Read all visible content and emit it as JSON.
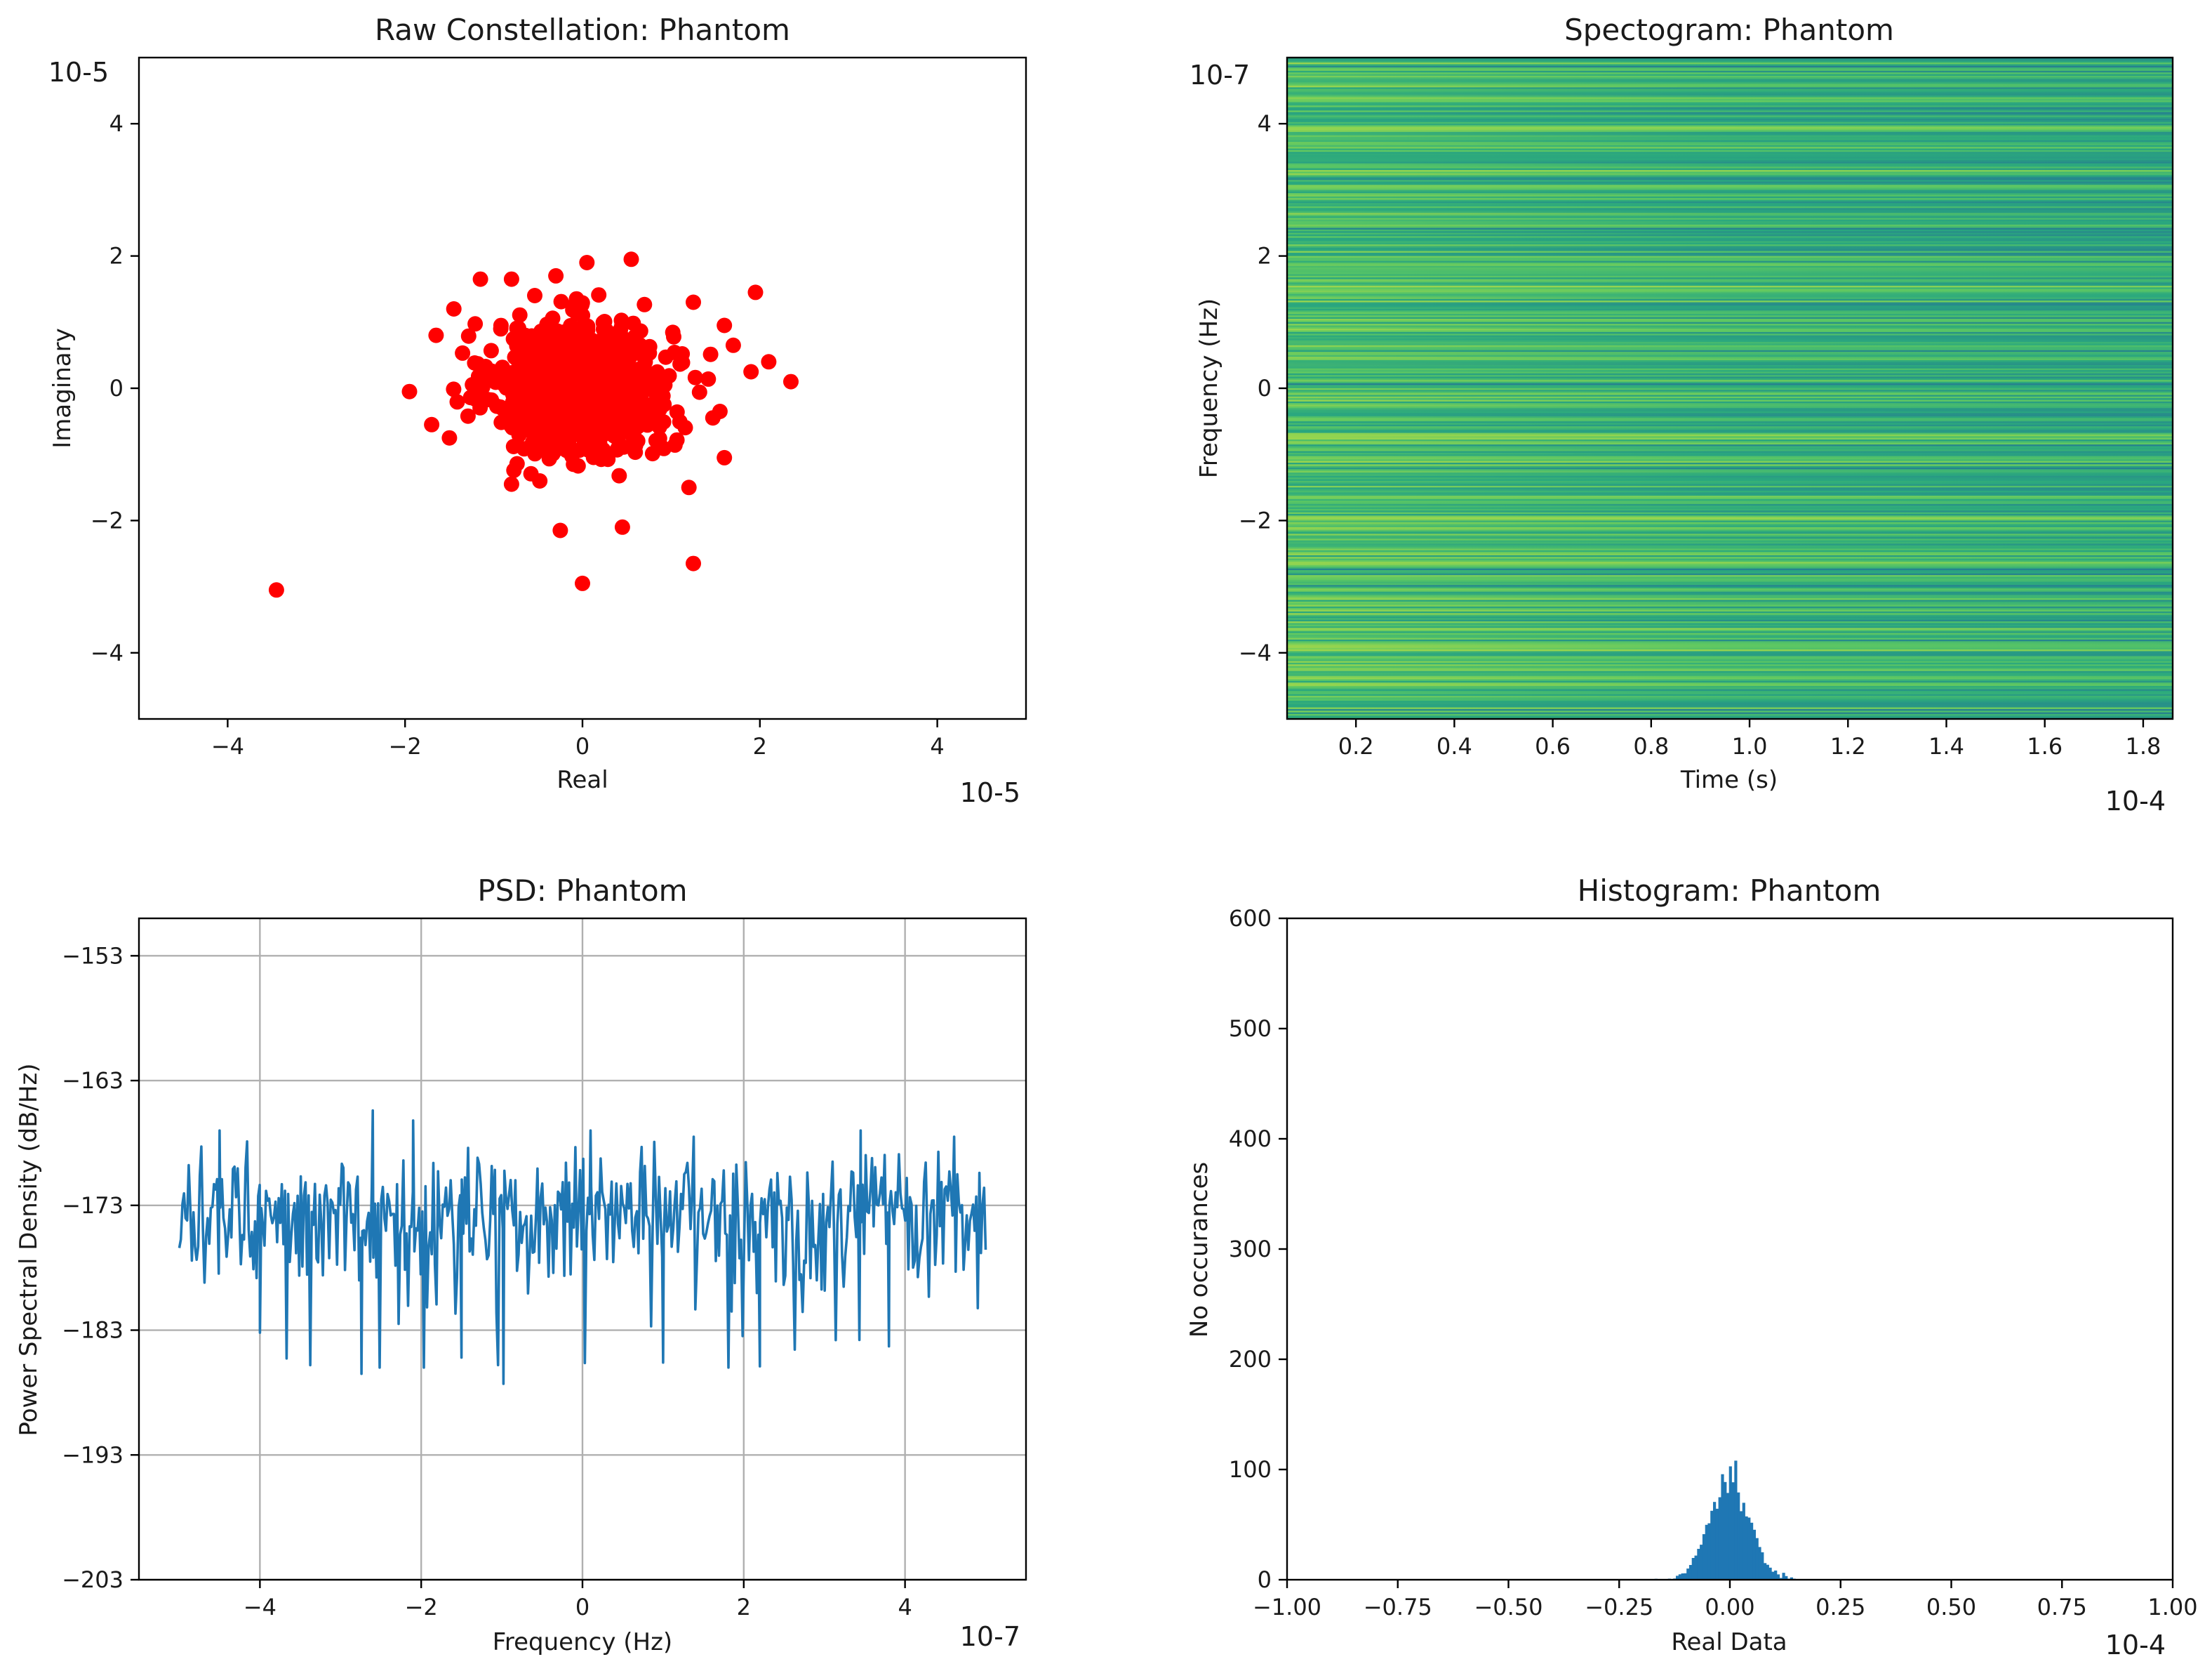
{
  "colors": {
    "constellation_marker": "#ff0000",
    "psd_line": "#1f77b4",
    "hist_bar": "#1f77b4",
    "grid": "#b0b0b0",
    "spectrogram_low": "#2a8f7f",
    "spectrogram_mid": "#4fbf63",
    "spectrogram_high": "#c9e34a"
  },
  "chart_data": [
    {
      "id": "constellation",
      "type": "scatter",
      "title": "Raw Constellation: Phantom",
      "xlabel": "Real",
      "ylabel": "Imaginary",
      "xlim": [
        -5,
        5
      ],
      "ylim": [
        -5,
        5
      ],
      "x_offset_label": "10-5",
      "y_offset_label": "10-5",
      "xticks": [
        -4,
        -2,
        0,
        2,
        4
      ],
      "xtick_labels": [
        "−4",
        "−2",
        "0",
        "2",
        "4"
      ],
      "yticks": [
        -4,
        -2,
        0,
        2,
        4
      ],
      "ytick_labels": [
        "−4",
        "−2",
        "0",
        "2",
        "4"
      ],
      "grid": false,
      "marker": "circle",
      "notable_points": [
        {
          "x": -3.45,
          "y": -3.05
        },
        {
          "x": 0.0,
          "y": -2.95
        },
        {
          "x": 1.25,
          "y": -2.65
        },
        {
          "x": -0.25,
          "y": -2.15
        },
        {
          "x": 0.45,
          "y": -2.1
        },
        {
          "x": 1.2,
          "y": -1.5
        },
        {
          "x": -0.8,
          "y": -1.45
        },
        {
          "x": 1.6,
          "y": -1.05
        },
        {
          "x": -1.7,
          "y": -0.55
        },
        {
          "x": -1.95,
          "y": -0.05
        },
        {
          "x": 1.55,
          "y": -0.35
        },
        {
          "x": 1.9,
          "y": 0.25
        },
        {
          "x": 2.1,
          "y": 0.4
        },
        {
          "x": 2.35,
          "y": 0.1
        },
        {
          "x": 1.95,
          "y": 1.45
        },
        {
          "x": 1.6,
          "y": 0.95
        },
        {
          "x": -1.15,
          "y": 1.65
        },
        {
          "x": -0.8,
          "y": 1.65
        },
        {
          "x": -0.3,
          "y": 1.7
        },
        {
          "x": 0.05,
          "y": 1.9
        },
        {
          "x": 0.55,
          "y": 1.95
        },
        {
          "x": 1.25,
          "y": 1.3
        },
        {
          "x": -1.65,
          "y": 0.8
        },
        {
          "x": -1.45,
          "y": 1.2
        },
        {
          "x": 1.7,
          "y": 0.65
        },
        {
          "x": -1.5,
          "y": -0.75
        }
      ],
      "cluster": {
        "center_x": 0.0,
        "center_y": 0.0,
        "std": 0.5,
        "count": 900
      }
    },
    {
      "id": "spectrogram",
      "type": "heatmap",
      "title": "Spectogram: Phantom",
      "xlabel": "Time (s)",
      "ylabel": "Frequency (Hz)",
      "xlim": [
        0.06,
        1.86
      ],
      "ylim": [
        -5,
        5
      ],
      "x_offset_label": "10-4",
      "y_offset_label": "10-7",
      "xticks": [
        0.2,
        0.4,
        0.6,
        0.8,
        1.0,
        1.2,
        1.4,
        1.6,
        1.8
      ],
      "xtick_labels": [
        "0.2",
        "0.4",
        "0.6",
        "0.8",
        "1.0",
        "1.2",
        "1.4",
        "1.6",
        "1.8"
      ],
      "yticks": [
        -4,
        -2,
        0,
        2,
        4
      ],
      "ytick_labels": [
        "−4",
        "−2",
        "0",
        "2",
        "4"
      ],
      "colormap": "viridis (upper range, horizontal banding)",
      "frequency_bins": 400,
      "grid": false
    },
    {
      "id": "psd",
      "type": "line",
      "title": "PSD: Phantom",
      "xlabel": "Frequency (Hz)",
      "ylabel": "Power Spectral Density (dB/Hz)",
      "xlim": [
        -5.5,
        5.5
      ],
      "ylim": [
        -203,
        -150
      ],
      "x_offset_label": "10-7",
      "xticks": [
        -4,
        -2,
        0,
        2,
        4
      ],
      "xtick_labels": [
        "−4",
        "−2",
        "0",
        "2",
        "4"
      ],
      "yticks": [
        -203,
        -193,
        -183,
        -173,
        -163,
        -153
      ],
      "ytick_labels": [
        "−203",
        "−193",
        "−183",
        "−173",
        "−163",
        "−153"
      ],
      "grid": true,
      "x_range": [
        -5,
        5
      ],
      "points": 512,
      "mean_db": -173.5,
      "notable_dips": [
        {
          "x": -2.74,
          "y": -186.5
        },
        {
          "x": -0.98,
          "y": -187.3
        },
        {
          "x": 2.2,
          "y": -185.9
        },
        {
          "x": -1.5,
          "y": -185.2
        },
        {
          "x": 1.0,
          "y": -185.6
        },
        {
          "x": -4.0,
          "y": -183.2
        },
        {
          "x": 3.8,
          "y": -184.3
        }
      ],
      "notable_peaks": [
        {
          "x": -2.6,
          "y": -165.4
        },
        {
          "x": -2.1,
          "y": -166.2
        },
        {
          "x": -4.5,
          "y": -167.0
        },
        {
          "x": 0.1,
          "y": -167.0
        },
        {
          "x": 3.45,
          "y": -167.0
        }
      ]
    },
    {
      "id": "histogram",
      "type": "bar",
      "title": "Histogram: Phantom",
      "xlabel": "Real Data",
      "ylabel": "No occurances",
      "xlim": [
        -1.0,
        1.0
      ],
      "ylim": [
        0,
        600
      ],
      "x_offset_label": "10-4",
      "xticks": [
        -1.0,
        -0.75,
        -0.5,
        -0.25,
        0.0,
        0.25,
        0.5,
        0.75,
        1.0
      ],
      "xtick_labels": [
        "−1.00",
        "−0.75",
        "−0.50",
        "−0.25",
        "0.00",
        "0.25",
        "0.50",
        "0.75",
        "1.00"
      ],
      "yticks": [
        0,
        100,
        200,
        300,
        400,
        500,
        600
      ],
      "ytick_labels": [
        "0",
        "100",
        "200",
        "300",
        "400",
        "500",
        "600"
      ],
      "grid": false,
      "bin_width": 0.006,
      "distribution": {
        "type": "gaussian",
        "mean": 0.0,
        "std": 0.045,
        "peak": 108,
        "peak_x": 0.015
      },
      "support": [
        -0.17,
        0.17
      ]
    }
  ]
}
